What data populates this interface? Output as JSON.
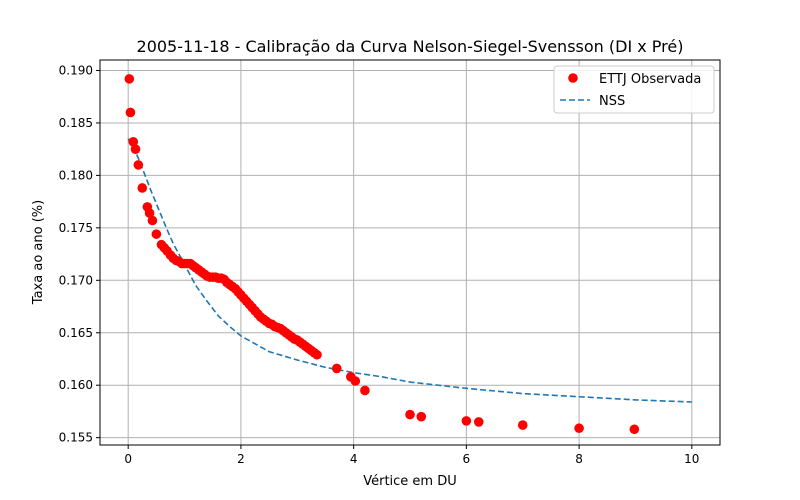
{
  "chart_data": {
    "type": "scatter",
    "title": "2005-11-18 - Calibração da Curva Nelson-Siegel-Svensson (DI x Pré)",
    "xlabel": "Vértice em DU",
    "ylabel": "Taxa ao ano (%)",
    "xlim": [
      -0.5,
      10.5
    ],
    "ylim": [
      0.1543,
      0.191
    ],
    "xticks": [
      0,
      2,
      4,
      6,
      8,
      10
    ],
    "xtick_labels": [
      "0",
      "2",
      "4",
      "6",
      "8",
      "10"
    ],
    "yticks": [
      0.155,
      0.16,
      0.165,
      0.17,
      0.175,
      0.18,
      0.185,
      0.19
    ],
    "ytick_labels": [
      "0.155",
      "0.160",
      "0.165",
      "0.170",
      "0.175",
      "0.180",
      "0.185",
      "0.190"
    ],
    "grid": true,
    "legend_position": "top-right",
    "series": [
      {
        "name": "ETTJ Observada",
        "kind": "scatter",
        "color": "#ff0000",
        "points": [
          [
            0.02,
            0.1892
          ],
          [
            0.04,
            0.186
          ],
          [
            0.09,
            0.1832
          ],
          [
            0.13,
            0.1825
          ],
          [
            0.18,
            0.181
          ],
          [
            0.25,
            0.1788
          ],
          [
            0.34,
            0.177
          ],
          [
            0.38,
            0.1764
          ],
          [
            0.43,
            0.1757
          ],
          [
            0.5,
            0.1744
          ],
          [
            0.59,
            0.1734
          ],
          [
            0.64,
            0.1731
          ],
          [
            0.69,
            0.1728
          ],
          [
            0.75,
            0.1724
          ],
          [
            0.8,
            0.1721
          ],
          [
            0.85,
            0.1719
          ],
          [
            0.9,
            0.1718
          ],
          [
            0.95,
            0.1716
          ],
          [
            1.0,
            0.1716
          ],
          [
            1.05,
            0.1716
          ],
          [
            1.1,
            0.1716
          ],
          [
            1.15,
            0.1714
          ],
          [
            1.2,
            0.1712
          ],
          [
            1.25,
            0.171
          ],
          [
            1.3,
            0.1708
          ],
          [
            1.35,
            0.1706
          ],
          [
            1.4,
            0.1704
          ],
          [
            1.45,
            0.1703
          ],
          [
            1.5,
            0.1703
          ],
          [
            1.55,
            0.1703
          ],
          [
            1.6,
            0.1702
          ],
          [
            1.65,
            0.1702
          ],
          [
            1.7,
            0.1701
          ],
          [
            1.75,
            0.1698
          ],
          [
            1.8,
            0.1696
          ],
          [
            1.85,
            0.1694
          ],
          [
            1.9,
            0.1692
          ],
          [
            1.95,
            0.1689
          ],
          [
            2.0,
            0.1686
          ],
          [
            2.05,
            0.1683
          ],
          [
            2.1,
            0.168
          ],
          [
            2.15,
            0.1677
          ],
          [
            2.2,
            0.1674
          ],
          [
            2.25,
            0.1671
          ],
          [
            2.3,
            0.1668
          ],
          [
            2.35,
            0.1665
          ],
          [
            2.4,
            0.1663
          ],
          [
            2.45,
            0.1661
          ],
          [
            2.5,
            0.1659
          ],
          [
            2.55,
            0.1658
          ],
          [
            2.6,
            0.1656
          ],
          [
            2.65,
            0.1655
          ],
          [
            2.7,
            0.1654
          ],
          [
            2.75,
            0.1652
          ],
          [
            2.8,
            0.165
          ],
          [
            2.85,
            0.1648
          ],
          [
            2.9,
            0.1646
          ],
          [
            2.95,
            0.1644
          ],
          [
            3.0,
            0.1643
          ],
          [
            3.05,
            0.1641
          ],
          [
            3.1,
            0.1639
          ],
          [
            3.15,
            0.1637
          ],
          [
            3.2,
            0.1635
          ],
          [
            3.25,
            0.1633
          ],
          [
            3.3,
            0.1631
          ],
          [
            3.35,
            0.1629
          ],
          [
            3.7,
            0.1616
          ],
          [
            3.95,
            0.1608
          ],
          [
            4.03,
            0.1604
          ],
          [
            4.2,
            0.1595
          ],
          [
            5.0,
            0.1572
          ],
          [
            5.2,
            0.157
          ],
          [
            6.0,
            0.1566
          ],
          [
            6.22,
            0.1565
          ],
          [
            7.0,
            0.1562
          ],
          [
            8.0,
            0.1559
          ],
          [
            8.98,
            0.1558
          ]
        ]
      },
      {
        "name": "NSS",
        "kind": "line",
        "style": "dashed",
        "color": "#1f77b4",
        "points": [
          [
            0.0,
            0.1835
          ],
          [
            0.1,
            0.1826
          ],
          [
            0.2,
            0.1814
          ],
          [
            0.3,
            0.18
          ],
          [
            0.4,
            0.1786
          ],
          [
            0.5,
            0.1773
          ],
          [
            0.6,
            0.176
          ],
          [
            0.7,
            0.1747
          ],
          [
            0.8,
            0.1735
          ],
          [
            1.0,
            0.1715
          ],
          [
            1.2,
            0.1695
          ],
          [
            1.4,
            0.168
          ],
          [
            1.6,
            0.1666
          ],
          [
            1.8,
            0.1656
          ],
          [
            2.0,
            0.1647
          ],
          [
            2.3,
            0.1638
          ],
          [
            2.5,
            0.1632
          ],
          [
            3.0,
            0.1624
          ],
          [
            3.5,
            0.1617
          ],
          [
            4.0,
            0.1612
          ],
          [
            4.5,
            0.1608
          ],
          [
            5.0,
            0.1603
          ],
          [
            6.0,
            0.1597
          ],
          [
            7.0,
            0.1592
          ],
          [
            8.0,
            0.1589
          ],
          [
            9.0,
            0.1586
          ],
          [
            10.0,
            0.1584
          ]
        ]
      }
    ]
  }
}
